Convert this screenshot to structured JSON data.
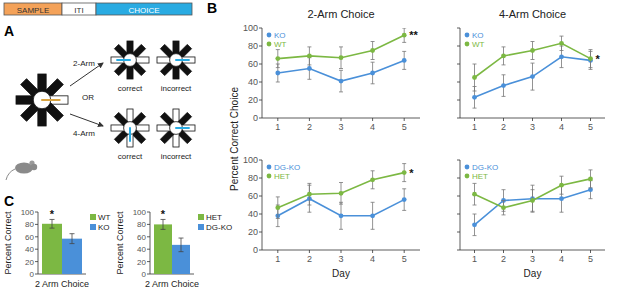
{
  "panel_labels": [
    "A",
    "B",
    "C"
  ],
  "diagram": {
    "timeline": [
      {
        "label": "SAMPLE",
        "color": "#f4a259"
      },
      {
        "label": "ITI",
        "color": "#ffffff"
      },
      {
        "label": "CHOICE",
        "color": "#29abe2"
      }
    ],
    "choices": [
      {
        "label": "2-Arm",
        "outcomes": [
          "correct",
          "incorrect"
        ]
      },
      {
        "label": "4-Arm",
        "outcomes": [
          "correct",
          "incorrect"
        ]
      }
    ],
    "connector": "OR"
  },
  "chart_data": [
    {
      "type": "line",
      "title": "2-Arm Choice",
      "y_label": "Percent Correct Choice",
      "x": [
        1,
        2,
        3,
        4,
        5
      ],
      "xlim": [
        0.5,
        5.5
      ],
      "xticks": [
        1,
        2,
        3,
        4,
        5
      ],
      "ylim": [
        0,
        100
      ],
      "yticks": [
        0,
        20,
        40,
        60,
        80,
        100
      ],
      "grid": false,
      "legend": "upper left",
      "series": [
        {
          "name": "KO",
          "color": "#4a90d9",
          "marker": "circle",
          "values": [
            50,
            55,
            41,
            50,
            64
          ],
          "errors": [
            10,
            12,
            12,
            12,
            10
          ]
        },
        {
          "name": "WT",
          "color": "#7cb843",
          "marker": "circle",
          "values": [
            66,
            69,
            67,
            75,
            92
          ],
          "errors": [
            10,
            10,
            12,
            10,
            8
          ]
        }
      ],
      "annotations": [
        {
          "text": "**",
          "x": 5
        }
      ]
    },
    {
      "type": "line",
      "title": "4-Arm Choice",
      "x": [
        1,
        2,
        3,
        4,
        5
      ],
      "xlim": [
        0.5,
        5.5
      ],
      "xticks": [
        1,
        2,
        3,
        4,
        5
      ],
      "ylim": [
        0,
        100
      ],
      "yticks": [
        0,
        20,
        40,
        60,
        80,
        100
      ],
      "grid": false,
      "legend": "upper left",
      "tick_labels": "x",
      "series": [
        {
          "name": "KO",
          "color": "#4a90d9",
          "marker": "circle",
          "values": [
            23,
            36,
            46,
            68,
            64
          ],
          "errors": [
            12,
            12,
            15,
            12,
            10
          ]
        },
        {
          "name": "WT",
          "color": "#7cb843",
          "marker": "circle",
          "values": [
            45,
            69,
            75,
            83,
            66
          ],
          "errors": [
            15,
            10,
            10,
            8,
            10
          ]
        }
      ],
      "annotations": [
        {
          "text": "*",
          "x": 5
        }
      ]
    },
    {
      "type": "line",
      "x_label": "Day",
      "x": [
        1,
        2,
        3,
        4,
        5
      ],
      "xlim": [
        0.5,
        5.5
      ],
      "xticks": [
        1,
        2,
        3,
        4,
        5
      ],
      "ylim": [
        0,
        100
      ],
      "yticks": [
        0,
        20,
        40,
        60,
        80,
        100
      ],
      "grid": false,
      "legend": "upper left",
      "series": [
        {
          "name": "DG-KO",
          "color": "#4a90d9",
          "marker": "circle",
          "values": [
            38,
            57,
            38,
            38,
            56
          ],
          "errors": [
            12,
            15,
            15,
            15,
            12
          ]
        },
        {
          "name": "HET",
          "color": "#7cb843",
          "marker": "circle",
          "values": [
            47,
            62,
            63,
            78,
            86
          ],
          "errors": [
            12,
            12,
            12,
            10,
            10
          ]
        }
      ],
      "annotations": [
        {
          "text": "*",
          "x": 5
        }
      ]
    },
    {
      "type": "line",
      "x_label": "Day",
      "x": [
        1,
        2,
        3,
        4,
        5
      ],
      "xlim": [
        0.5,
        5.5
      ],
      "xticks": [
        1,
        2,
        3,
        4,
        5
      ],
      "ylim": [
        0,
        100
      ],
      "yticks": [
        0,
        20,
        40,
        60,
        80,
        100
      ],
      "grid": false,
      "legend": "upper left",
      "tick_labels": "x",
      "series": [
        {
          "name": "DG-KO",
          "color": "#4a90d9",
          "marker": "circle",
          "values": [
            28,
            55,
            57,
            57,
            67
          ],
          "errors": [
            12,
            12,
            15,
            15,
            10
          ]
        },
        {
          "name": "HET",
          "color": "#7cb843",
          "marker": "circle",
          "values": [
            62,
            47,
            55,
            72,
            79
          ],
          "errors": [
            12,
            8,
            12,
            10,
            10
          ]
        }
      ]
    },
    {
      "type": "bar",
      "y_label": "Percent Correct",
      "categories": [
        "2 Arm Choice"
      ],
      "ylim": [
        0,
        100
      ],
      "yticks": [
        0,
        20,
        40,
        60,
        80,
        100
      ],
      "grid": false,
      "legend": "right",
      "series": [
        {
          "name": "WT",
          "color": "#7cb843",
          "values": [
            81
          ],
          "errors": [
            7
          ]
        },
        {
          "name": "KO",
          "color": "#4a90d9",
          "values": [
            57
          ],
          "errors": [
            8
          ]
        }
      ],
      "annotations": [
        {
          "text": "*",
          "series": "WT"
        }
      ]
    },
    {
      "type": "bar",
      "y_label": "Percent Correct",
      "categories": [
        "2 Arm Choice"
      ],
      "ylim": [
        0,
        100
      ],
      "yticks": [
        0,
        20,
        40,
        60,
        80,
        100
      ],
      "grid": false,
      "legend": "right",
      "series": [
        {
          "name": "HET",
          "color": "#7cb843",
          "values": [
            80
          ],
          "errors": [
            8
          ]
        },
        {
          "name": "DG-KO",
          "color": "#4a90d9",
          "values": [
            47
          ],
          "errors": [
            11
          ]
        }
      ],
      "annotations": [
        {
          "text": "*",
          "series": "HET"
        }
      ]
    }
  ]
}
